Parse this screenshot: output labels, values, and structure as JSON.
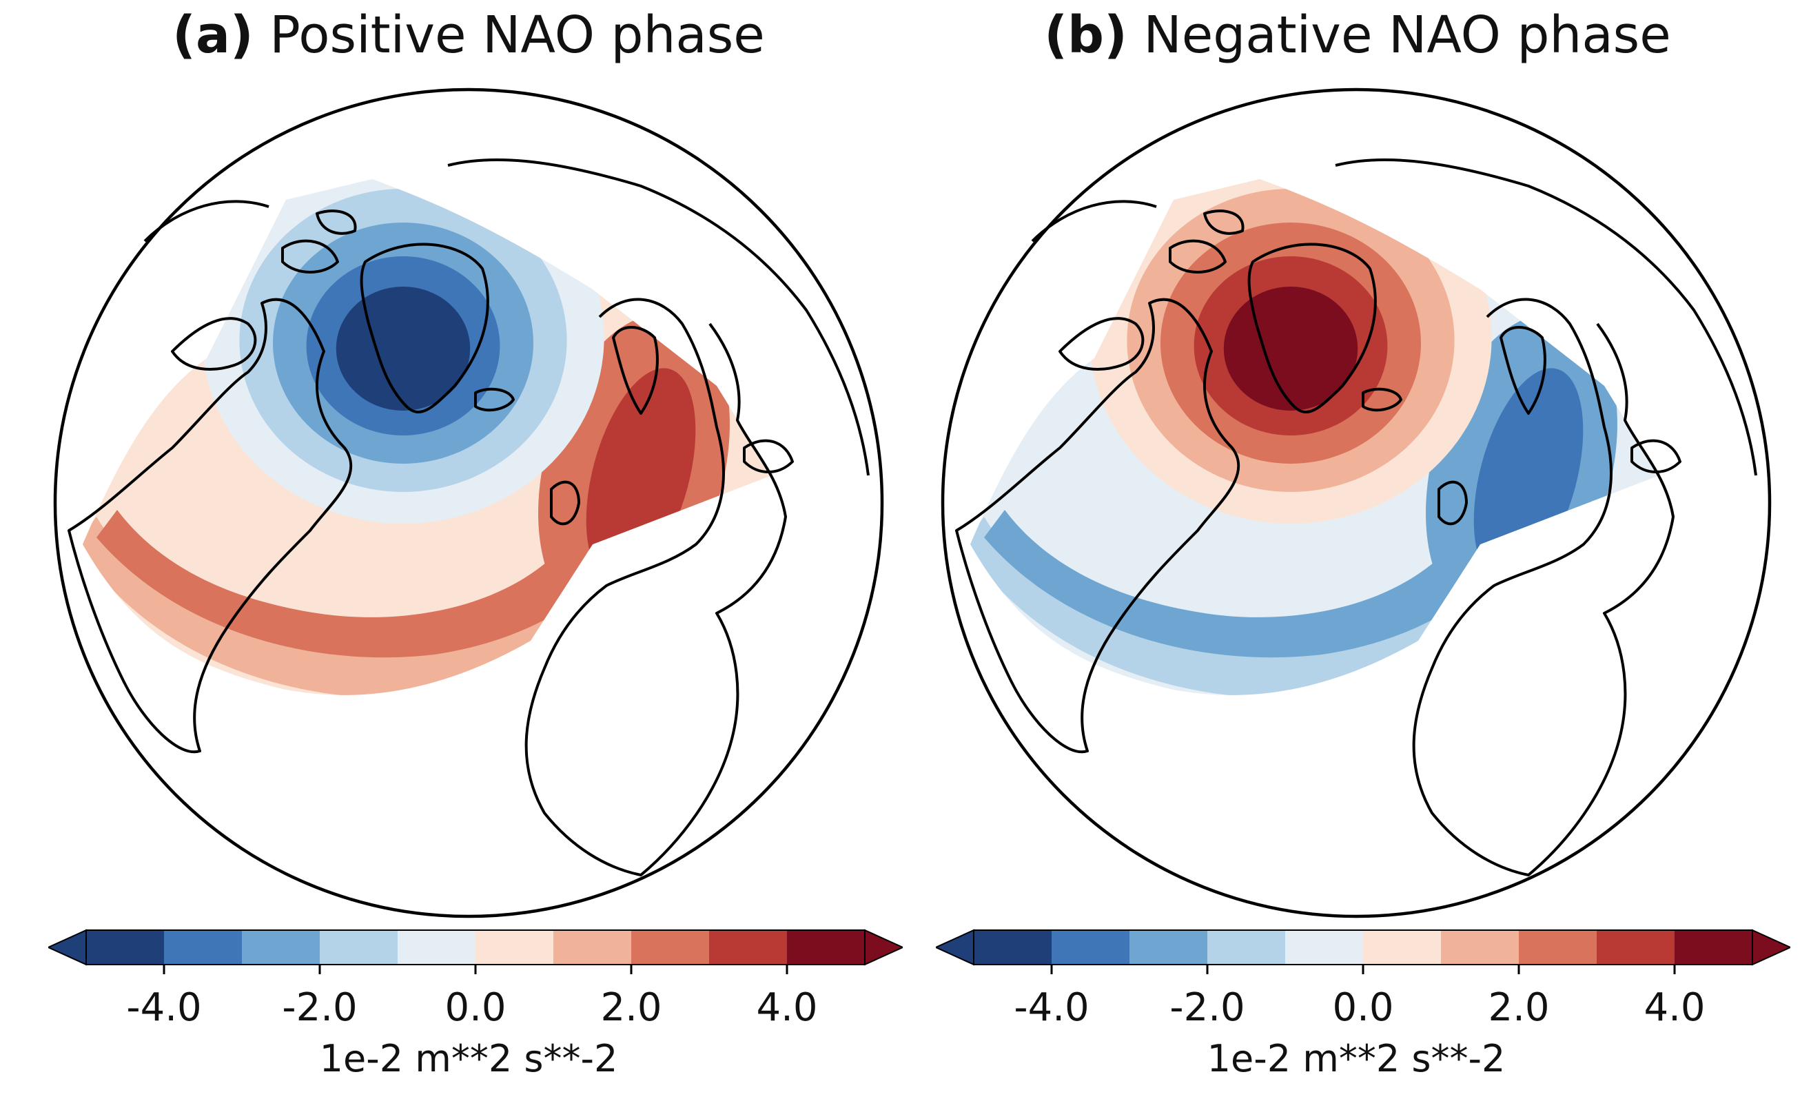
{
  "panels": [
    {
      "tag": "(a)",
      "title": "Positive NAO phase",
      "phase": "positive",
      "colorbar": {
        "ticks": [
          "-4.0",
          "-2.0",
          "0.0",
          "2.0",
          "4.0"
        ],
        "label": "1e-2 m**2 s**-2"
      }
    },
    {
      "tag": "(b)",
      "title": "Negative NAO phase",
      "phase": "negative",
      "colorbar": {
        "ticks": [
          "-4.0",
          "-2.0",
          "0.0",
          "2.0",
          "4.0"
        ],
        "label": "1e-2 m**2 s**-2"
      }
    }
  ],
  "colorbar_scale": {
    "levels": [
      -5,
      -4,
      -3,
      -2,
      -1,
      0,
      1,
      2,
      3,
      4,
      5
    ],
    "colors": [
      "#1f3f78",
      "#3f76b8",
      "#6fa6d1",
      "#b5d3e8",
      "#e6eef5",
      "#fbe4d6",
      "#f0b39a",
      "#d9735b",
      "#b93a34",
      "#7b0d1f"
    ],
    "extend": "both"
  },
  "colors": {
    "coast": "#000000",
    "background": "#ffffff"
  }
}
